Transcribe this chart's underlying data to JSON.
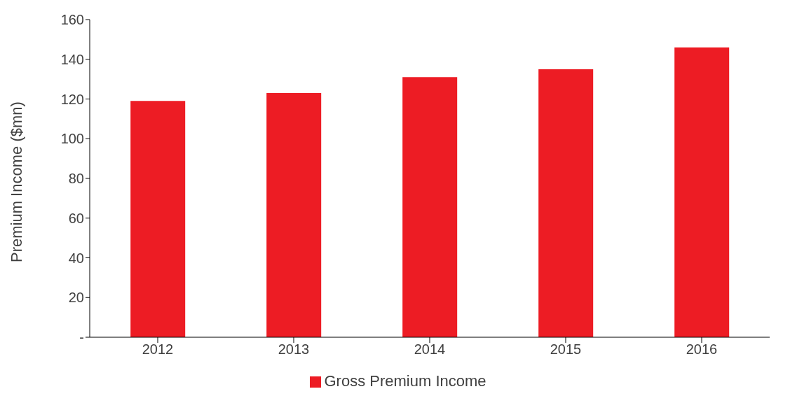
{
  "chart_data": {
    "type": "bar",
    "ylabel": "Premium Income ($mn)",
    "categories": [
      "2012",
      "2013",
      "2014",
      "2015",
      "2016"
    ],
    "series": [
      {
        "name": "Gross Premium Income",
        "color": "#ed1c24",
        "values": [
          119,
          123,
          131,
          135,
          146
        ]
      }
    ],
    "ylim": [
      0,
      160
    ],
    "yticks": [
      {
        "value": 0,
        "label": "-"
      },
      20,
      40,
      60,
      80,
      100,
      120,
      140,
      160
    ],
    "grid": false,
    "legend": "bottom"
  }
}
